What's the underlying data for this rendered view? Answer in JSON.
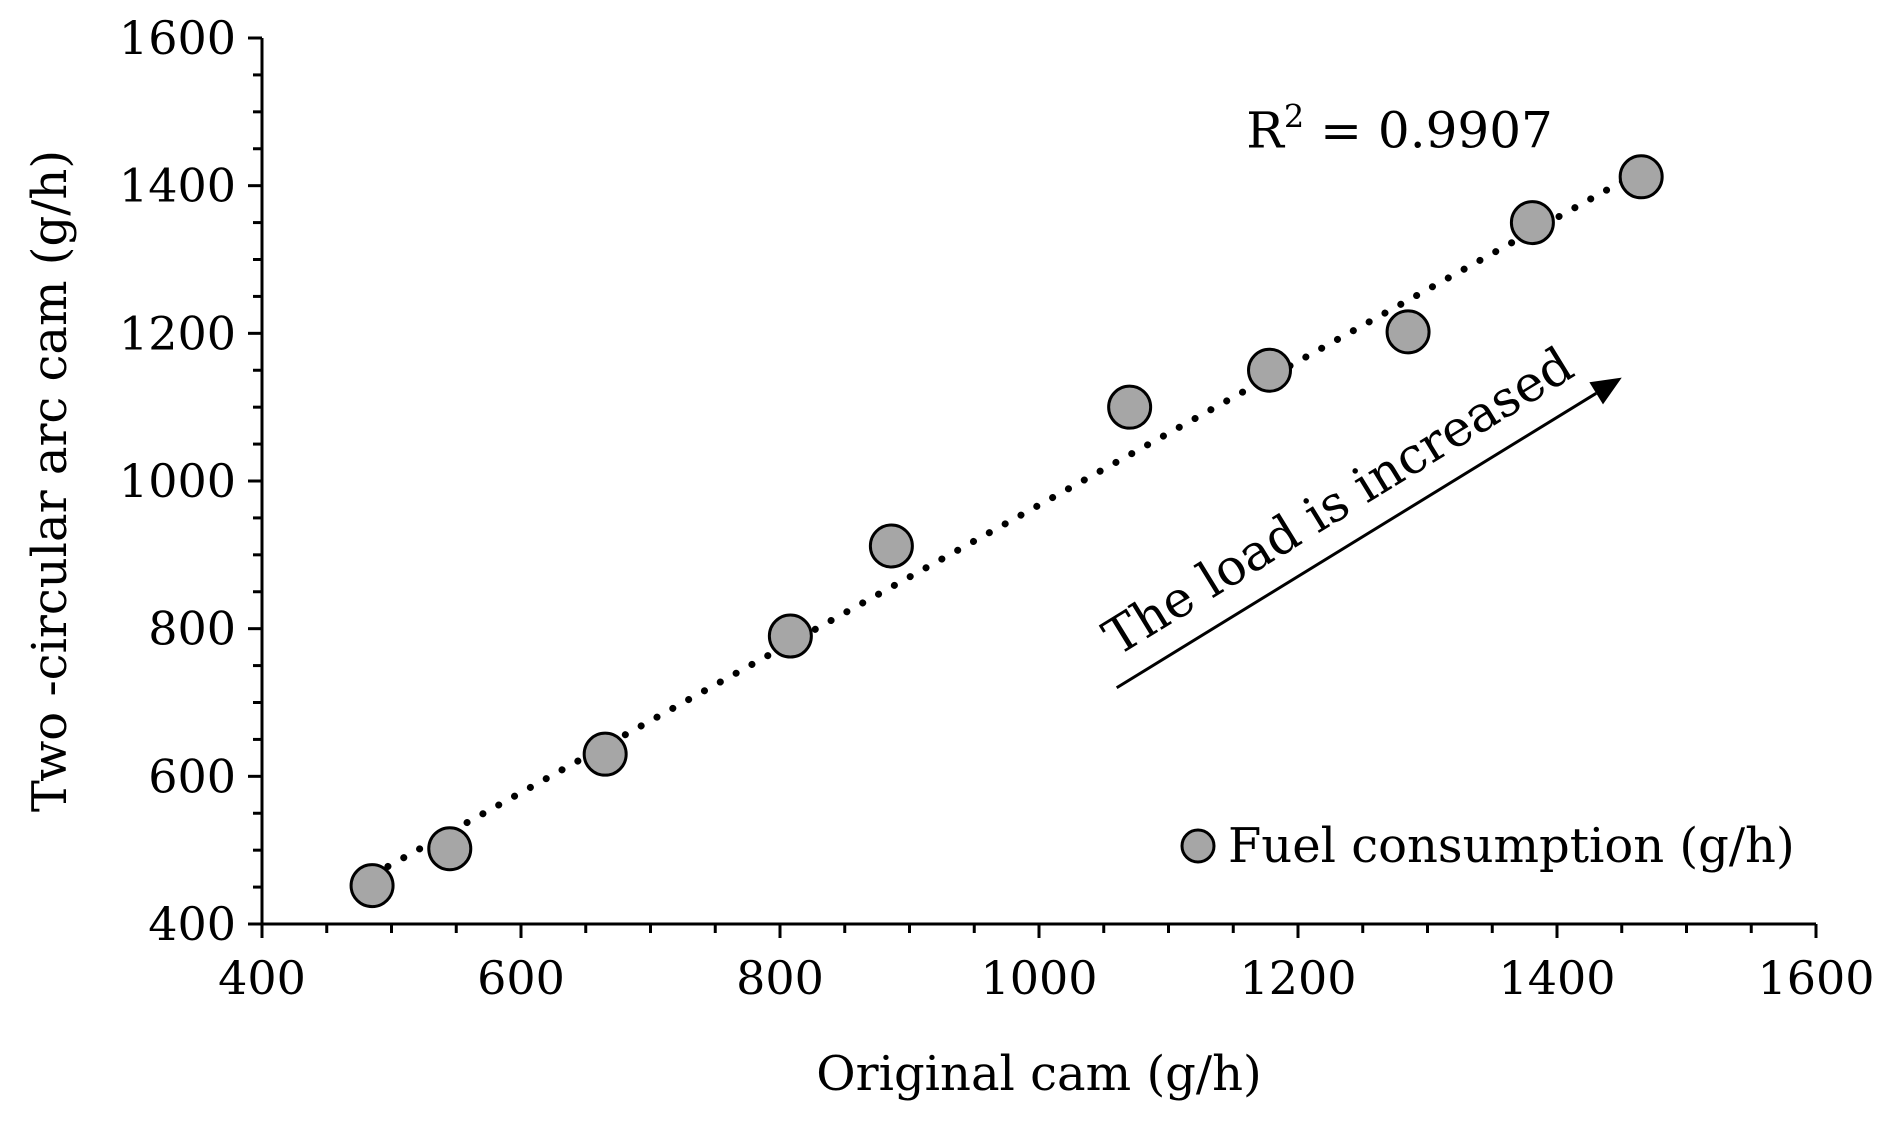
{
  "chart_data": {
    "type": "scatter",
    "xlabel": "Original cam (g/h)",
    "ylabel": "Two -circular arc cam (g/h)",
    "xlim": [
      400,
      1600
    ],
    "ylim": [
      400,
      1600
    ],
    "xticks": [
      "400",
      "600",
      "800",
      "1000",
      "1200",
      "1400",
      "1600"
    ],
    "yticks": [
      "400",
      "600",
      "800",
      "1000",
      "1200",
      "1400",
      "1600"
    ],
    "grid": false,
    "legend_position": "bottom-right",
    "series": [
      {
        "name": "Fuel consumption (g/h)",
        "color": "#a6a6a6",
        "points": [
          {
            "x": 485,
            "y": 452
          },
          {
            "x": 545,
            "y": 502
          },
          {
            "x": 665,
            "y": 630
          },
          {
            "x": 808,
            "y": 790
          },
          {
            "x": 886,
            "y": 912
          },
          {
            "x": 1070,
            "y": 1100
          },
          {
            "x": 1178,
            "y": 1150
          },
          {
            "x": 1285,
            "y": 1202
          },
          {
            "x": 1381,
            "y": 1350
          },
          {
            "x": 1465,
            "y": 1412
          }
        ]
      }
    ],
    "trendline": {
      "style": "dotted",
      "x_start": 485,
      "y_start": 466,
      "x_end": 1465,
      "y_end": 1420,
      "r2_label_main": "R",
      "r2_label_sup": "2",
      "r2_label_rest": " = 0.9907"
    },
    "annotation": {
      "text": "The load is increased",
      "arrow_from": {
        "x": 1060,
        "y": 720
      },
      "arrow_to": {
        "x": 1450,
        "y": 1140
      }
    }
  }
}
